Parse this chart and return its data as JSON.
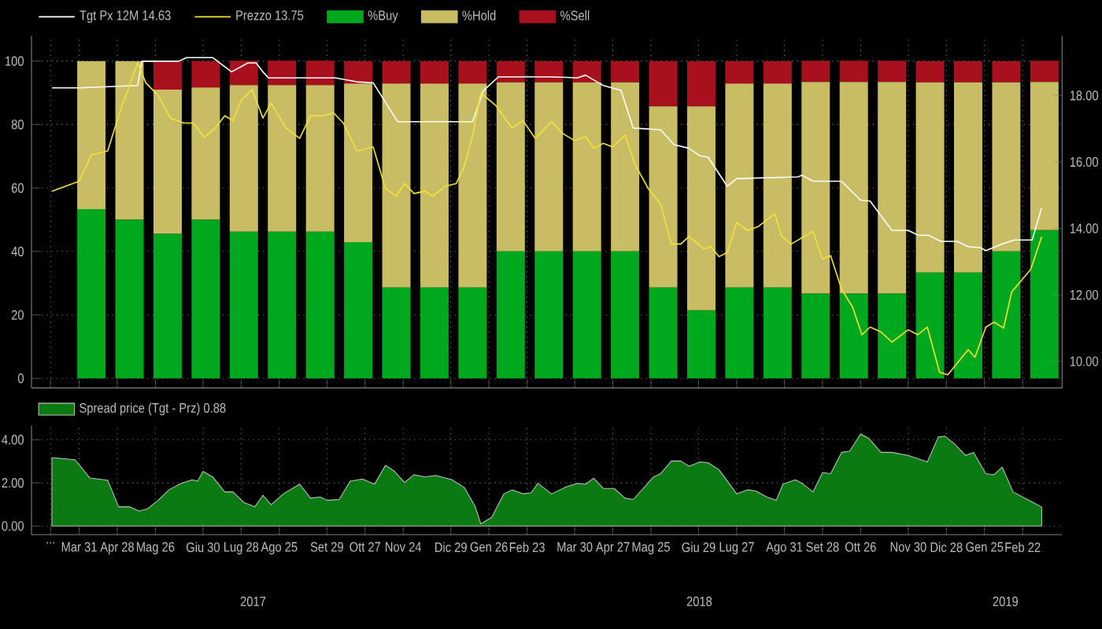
{
  "chart_data": [
    {
      "type": "bar",
      "stacked": true,
      "grid": true,
      "legend": "top",
      "tick_labels": "y",
      "xlim": [
        "2017-02-24",
        "2019-03-23"
      ],
      "ylim": [
        -3,
        108
      ],
      "y2lim": [
        9.2,
        19.8
      ],
      "yticks": [
        0,
        20,
        40,
        60,
        80,
        100
      ],
      "y2ticks": [
        {
          "value": 10,
          "label": "10.00"
        },
        {
          "value": 12,
          "label": "12.00"
        },
        {
          "value": 14,
          "label": "14.00"
        },
        {
          "value": 16,
          "label": "16.00"
        },
        {
          "value": 18,
          "label": "18.00"
        }
      ],
      "xticks": [
        {
          "value": "2017-03-10",
          "label": null
        },
        {
          "value": "2017-03-31",
          "label": null
        },
        {
          "value": "2017-04-28",
          "label": null
        },
        {
          "value": "2017-05-26",
          "label": null
        },
        {
          "value": "2017-06-30",
          "label": null
        },
        {
          "value": "2017-07-28",
          "label": null
        },
        {
          "value": "2017-08-25",
          "label": null
        },
        {
          "value": "2017-09-29",
          "label": null
        },
        {
          "value": "2017-10-27",
          "label": null
        },
        {
          "value": "2017-11-24",
          "label": null
        },
        {
          "value": "2017-12-29",
          "label": null
        },
        {
          "value": "2018-01-26",
          "label": null
        },
        {
          "value": "2018-02-23",
          "label": null
        },
        {
          "value": "2018-03-30",
          "label": null
        },
        {
          "value": "2018-04-27",
          "label": null
        },
        {
          "value": "2018-05-25",
          "label": null
        },
        {
          "value": "2018-06-29",
          "label": null
        },
        {
          "value": "2018-07-27",
          "label": null
        },
        {
          "value": "2018-08-31",
          "label": null
        },
        {
          "value": "2018-09-28",
          "label": null
        },
        {
          "value": "2018-10-26",
          "label": null
        },
        {
          "value": "2018-11-30",
          "label": null
        },
        {
          "value": "2018-12-28",
          "label": null
        },
        {
          "value": "2019-01-25",
          "label": null
        },
        {
          "value": "2019-02-22",
          "label": null
        }
      ],
      "x": [
        "2017-04-09",
        "2017-05-07",
        "2017-06-04",
        "2017-07-02",
        "2017-07-30",
        "2017-08-27",
        "2017-09-24",
        "2017-10-22",
        "2017-11-19",
        "2017-12-17",
        "2018-01-14",
        "2018-02-11",
        "2018-03-11",
        "2018-04-08",
        "2018-05-06",
        "2018-06-03",
        "2018-07-01",
        "2018-07-29",
        "2018-08-26",
        "2018-09-23",
        "2018-10-21",
        "2018-11-18",
        "2018-12-16",
        "2019-01-13",
        "2019-02-10",
        "2019-03-10"
      ],
      "series": [
        {
          "name": "Tgt Px 12M 14.63",
          "type": "line",
          "axis": "y2",
          "color": "#ffffff",
          "x": [
            "2017-03-11",
            "2017-03-31",
            "2017-05-13",
            "2017-05-16",
            "2017-06-12",
            "2017-06-18",
            "2017-07-07",
            "2017-07-21",
            "2017-08-02",
            "2017-08-08",
            "2017-08-13",
            "2017-08-17",
            "2017-10-05",
            "2017-10-21",
            "2017-11-02",
            "2017-11-20",
            "2018-01-14",
            "2018-01-22",
            "2018-02-02",
            "2018-03-13",
            "2018-04-01",
            "2018-04-07",
            "2018-04-20",
            "2018-05-03",
            "2018-05-12",
            "2018-06-01",
            "2018-06-11",
            "2018-06-22",
            "2018-06-30",
            "2018-07-06",
            "2018-07-20",
            "2018-07-27",
            "2018-09-10",
            "2018-09-13",
            "2018-09-21",
            "2018-10-12",
            "2018-10-26",
            "2018-11-02",
            "2018-11-18",
            "2018-11-30",
            "2018-12-07",
            "2018-12-15",
            "2018-12-24",
            "2019-01-05",
            "2019-01-13",
            "2019-01-22",
            "2019-01-26",
            "2019-02-07",
            "2019-02-16",
            "2019-03-01",
            "2019-03-08"
          ],
          "values": [
            18.23,
            18.23,
            18.3,
            19.03,
            19.03,
            19.14,
            19.14,
            18.71,
            18.98,
            18.98,
            18.71,
            18.53,
            18.53,
            18.41,
            18.38,
            17.21,
            17.21,
            18.15,
            18.56,
            18.56,
            18.53,
            18.61,
            18.3,
            18.15,
            17.02,
            16.97,
            16.52,
            16.41,
            16.18,
            16.14,
            15.27,
            15.5,
            15.55,
            15.6,
            15.42,
            15.42,
            14.85,
            14.82,
            13.94,
            13.94,
            13.8,
            13.79,
            13.61,
            13.61,
            13.45,
            13.42,
            13.33,
            13.53,
            13.65,
            13.65,
            14.63
          ]
        },
        {
          "name": "Prezzo 13.75",
          "type": "line",
          "axis": "y2",
          "color": "#f2e33c",
          "x": [
            "2017-03-11",
            "2017-03-31",
            "2017-04-09",
            "2017-04-21",
            "2017-04-29",
            "2017-05-13",
            "2017-05-19",
            "2017-05-28",
            "2017-06-06",
            "2017-06-16",
            "2017-06-23",
            "2017-07-01",
            "2017-07-09",
            "2017-07-16",
            "2017-07-22",
            "2017-07-28",
            "2017-08-05",
            "2017-08-13",
            "2017-08-19",
            "2017-08-30",
            "2017-09-09",
            "2017-09-17",
            "2017-09-26",
            "2017-10-04",
            "2017-10-11",
            "2017-10-21",
            "2017-11-02",
            "2017-11-11",
            "2017-11-19",
            "2017-11-25",
            "2017-12-02",
            "2017-12-10",
            "2017-12-16",
            "2017-12-25",
            "2018-01-02",
            "2018-01-08",
            "2018-01-14",
            "2018-01-20",
            "2018-01-31",
            "2018-02-12",
            "2018-02-20",
            "2018-03-01",
            "2018-03-13",
            "2018-03-21",
            "2018-03-30",
            "2018-04-07",
            "2018-04-13",
            "2018-04-20",
            "2018-04-27",
            "2018-05-06",
            "2018-05-13",
            "2018-05-23",
            "2018-06-01",
            "2018-06-09",
            "2018-06-16",
            "2018-06-22",
            "2018-07-03",
            "2018-07-08",
            "2018-07-14",
            "2018-07-20",
            "2018-07-27",
            "2018-08-04",
            "2018-08-12",
            "2018-08-24",
            "2018-08-29",
            "2018-09-05",
            "2018-09-21",
            "2018-09-28",
            "2018-10-04",
            "2018-10-12",
            "2018-10-20",
            "2018-10-27",
            "2018-11-02",
            "2018-11-10",
            "2018-11-18",
            "2018-11-30",
            "2018-12-07",
            "2018-12-14",
            "2018-12-23",
            "2018-12-29",
            "2019-01-13",
            "2019-01-18",
            "2019-01-26",
            "2019-02-01",
            "2019-02-08",
            "2019-02-14",
            "2019-02-28",
            "2019-03-08"
          ],
          "values": [
            15.12,
            15.42,
            16.21,
            16.33,
            17.39,
            18.98,
            18.38,
            18.0,
            17.32,
            17.17,
            17.17,
            16.74,
            17.02,
            17.39,
            17.24,
            17.85,
            18.18,
            17.32,
            17.77,
            17.02,
            16.71,
            17.39,
            17.39,
            17.47,
            17.17,
            16.33,
            16.45,
            15.2,
            14.97,
            15.35,
            15.05,
            15.12,
            14.97,
            15.27,
            15.35,
            15.88,
            16.79,
            18.08,
            17.7,
            17.02,
            17.24,
            16.71,
            17.21,
            16.86,
            16.64,
            16.76,
            16.41,
            16.56,
            16.45,
            16.82,
            15.95,
            15.2,
            14.74,
            13.53,
            13.53,
            13.76,
            13.38,
            13.45,
            13.15,
            13.27,
            14.18,
            13.94,
            14.06,
            14.44,
            13.76,
            13.53,
            13.91,
            13.08,
            13.18,
            12.17,
            11.64,
            10.8,
            11.03,
            10.88,
            10.58,
            10.95,
            10.8,
            11.03,
            9.67,
            9.59,
            10.35,
            10.12,
            11.03,
            11.18,
            11.0,
            12.09,
            12.77,
            13.75
          ]
        },
        {
          "name": "%Buy",
          "color": "#00a81e",
          "values": [
            53.3,
            50,
            45.5,
            50,
            46.2,
            46.2,
            46.2,
            42.9,
            28.6,
            28.6,
            28.6,
            40,
            40,
            40,
            40,
            28.6,
            21.4,
            28.6,
            28.6,
            26.7,
            26.7,
            26.7,
            33.3,
            33.3,
            40,
            46.7
          ]
        },
        {
          "name": "%Hold",
          "color": "#c8bc64",
          "values": [
            46.7,
            50,
            45.5,
            41.7,
            46.2,
            46.2,
            46.2,
            50,
            64.3,
            64.3,
            64.3,
            53.3,
            53.3,
            53.3,
            53.3,
            57.1,
            64.3,
            64.3,
            64.3,
            66.7,
            66.7,
            66.7,
            60,
            60,
            53.3,
            46.7
          ]
        },
        {
          "name": "%Sell",
          "color": "#a8101e",
          "values": [
            0,
            0,
            9.1,
            8.3,
            7.7,
            7.7,
            7.7,
            7.1,
            7.1,
            7.1,
            7.1,
            6.7,
            6.7,
            6.7,
            6.7,
            14.3,
            14.3,
            7.1,
            7.1,
            6.7,
            6.7,
            6.7,
            6.7,
            6.7,
            6.7,
            6.7
          ]
        }
      ]
    },
    {
      "type": "area",
      "grid": true,
      "legend": "top",
      "xlim": [
        "2017-02-24",
        "2019-03-23"
      ],
      "ylim": [
        -0.4,
        4.65
      ],
      "yticks": [
        {
          "value": 0,
          "label": "0.00"
        },
        {
          "value": 2,
          "label": "2.00"
        },
        {
          "value": 4,
          "label": "4.00"
        }
      ],
      "xticks": [
        {
          "value": "2017-03-10",
          "label": "..."
        },
        {
          "value": "2017-03-31",
          "label": "Mar 31"
        },
        {
          "value": "2017-04-28",
          "label": "Apr 28"
        },
        {
          "value": "2017-05-26",
          "label": "Mag 26"
        },
        {
          "value": "2017-06-30",
          "label": "Giu 30"
        },
        {
          "value": "2017-07-28",
          "label": "Lug 28"
        },
        {
          "value": "2017-08-25",
          "label": "Ago 25"
        },
        {
          "value": "2017-09-29",
          "label": "Set 29"
        },
        {
          "value": "2017-10-27",
          "label": "Ott 27"
        },
        {
          "value": "2017-11-24",
          "label": "Nov 24"
        },
        {
          "value": "2017-12-29",
          "label": "Dic 29"
        },
        {
          "value": "2018-01-26",
          "label": "Gen 26"
        },
        {
          "value": "2018-02-23",
          "label": "Feb 23"
        },
        {
          "value": "2018-03-30",
          "label": "Mar 30"
        },
        {
          "value": "2018-04-27",
          "label": "Apr 27"
        },
        {
          "value": "2018-05-25",
          "label": "Mag 25"
        },
        {
          "value": "2018-06-29",
          "label": "Giu 29"
        },
        {
          "value": "2018-07-27",
          "label": "Lug 27"
        },
        {
          "value": "2018-08-31",
          "label": "Ago 31"
        },
        {
          "value": "2018-09-28",
          "label": "Set 28"
        },
        {
          "value": "2018-10-26",
          "label": "Ott 26"
        },
        {
          "value": "2018-11-30",
          "label": "Nov 30"
        },
        {
          "value": "2018-12-28",
          "label": "Dic 28"
        },
        {
          "value": "2019-01-25",
          "label": "Gen 25"
        },
        {
          "value": "2019-02-22",
          "label": "Feb 22"
        }
      ],
      "annotations": [
        "2017",
        "2018",
        "2019"
      ],
      "series": [
        {
          "name": "Spread price (Tgt - Prz) 0.88",
          "color": "#0b7a12",
          "x": [
            "2017-03-11",
            "2017-03-28",
            "2017-04-08",
            "2017-04-21",
            "2017-04-29",
            "2017-05-07",
            "2017-05-14",
            "2017-05-20",
            "2017-05-28",
            "2017-06-05",
            "2017-06-14",
            "2017-06-22",
            "2017-06-26",
            "2017-06-30",
            "2017-07-07",
            "2017-07-16",
            "2017-07-22",
            "2017-07-30",
            "2017-08-07",
            "2017-08-13",
            "2017-08-19",
            "2017-08-28",
            "2017-09-09",
            "2017-09-17",
            "2017-09-24",
            "2017-09-29",
            "2017-10-08",
            "2017-10-16",
            "2017-10-25",
            "2017-11-03",
            "2017-11-11",
            "2017-11-17",
            "2017-11-25",
            "2017-12-02",
            "2017-12-10",
            "2017-12-18",
            "2017-12-30",
            "2018-01-08",
            "2018-01-16",
            "2018-01-20",
            "2018-01-28",
            "2018-02-06",
            "2018-02-12",
            "2018-02-20",
            "2018-02-26",
            "2018-03-03",
            "2018-03-13",
            "2018-03-24",
            "2018-04-01",
            "2018-04-07",
            "2018-04-13",
            "2018-04-20",
            "2018-04-28",
            "2018-05-06",
            "2018-05-12",
            "2018-05-27",
            "2018-06-01",
            "2018-06-09",
            "2018-06-16",
            "2018-06-22",
            "2018-06-30",
            "2018-07-06",
            "2018-07-14",
            "2018-07-27",
            "2018-08-04",
            "2018-08-10",
            "2018-08-18",
            "2018-08-25",
            "2018-08-30",
            "2018-09-08",
            "2018-09-13",
            "2018-09-21",
            "2018-09-28",
            "2018-10-04",
            "2018-10-12",
            "2018-10-18",
            "2018-10-26",
            "2018-11-01",
            "2018-11-10",
            "2018-11-18",
            "2018-11-30",
            "2018-12-14",
            "2018-12-22",
            "2018-12-27",
            "2019-01-03",
            "2019-01-11",
            "2019-01-17",
            "2019-01-26",
            "2019-02-01",
            "2019-02-07",
            "2019-02-15",
            "2019-02-28",
            "2019-03-08"
          ],
          "values": [
            3.17,
            3.07,
            2.22,
            2.12,
            0.89,
            0.89,
            0.69,
            0.79,
            1.19,
            1.68,
            1.98,
            2.14,
            2.08,
            2.53,
            2.28,
            1.58,
            1.58,
            1.09,
            0.89,
            1.43,
            0.99,
            1.49,
            1.94,
            1.29,
            1.35,
            1.19,
            1.23,
            2.08,
            2.18,
            1.94,
            2.81,
            2.57,
            2.02,
            2.38,
            2.28,
            2.34,
            2.14,
            1.78,
            0.89,
            0.1,
            0.4,
            1.49,
            1.68,
            1.49,
            1.54,
            1.98,
            1.49,
            1.82,
            1.98,
            1.94,
            2.22,
            1.74,
            1.74,
            1.29,
            1.23,
            2.28,
            2.42,
            3.01,
            3.01,
            2.77,
            2.97,
            2.93,
            2.61,
            1.49,
            1.68,
            1.62,
            1.35,
            1.19,
            1.94,
            2.14,
            1.98,
            1.58,
            2.48,
            2.42,
            3.41,
            3.47,
            4.26,
            4.06,
            3.41,
            3.41,
            3.27,
            2.97,
            4.12,
            4.16,
            3.8,
            3.27,
            3.41,
            2.42,
            2.38,
            2.73,
            1.58,
            1.15,
            0.88
          ]
        }
      ]
    }
  ]
}
